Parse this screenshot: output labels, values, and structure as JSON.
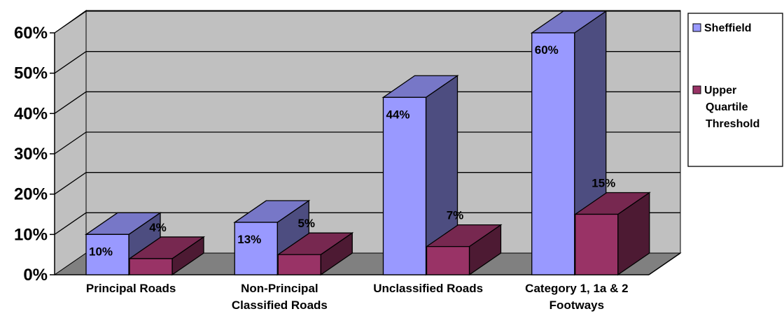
{
  "chart_data": {
    "type": "bar",
    "categories": [
      [
        "Principal Roads"
      ],
      [
        "Non-Principal",
        "Classified Roads"
      ],
      [
        "Unclassified Roads"
      ],
      [
        "Category 1, 1a & 2",
        "Footways"
      ]
    ],
    "series": [
      {
        "name": "Sheffield",
        "values": [
          10,
          13,
          44,
          60
        ],
        "labels": [
          "10%",
          "13%",
          "44%",
          "60%"
        ],
        "color": "#9999ff"
      },
      {
        "name": [
          "Upper",
          "Quartile",
          "Threshold"
        ],
        "values": [
          4,
          5,
          7,
          15
        ],
        "labels": [
          "4%",
          "5%",
          "7%",
          "15%"
        ],
        "color": "#993366"
      }
    ],
    "y_ticks": [
      "0%",
      "10%",
      "20%",
      "30%",
      "40%",
      "50%",
      "60%"
    ],
    "ylim": [
      0,
      60
    ],
    "grid": true,
    "legend": "right",
    "colors": {
      "wall": "#c0c0c0",
      "floor": "#808080",
      "grid": "#000000"
    }
  }
}
